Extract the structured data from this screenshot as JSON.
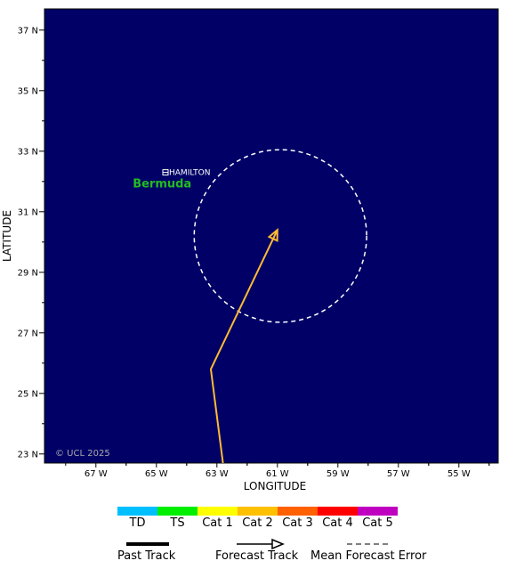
{
  "map": {
    "background_color": "#000066",
    "extent": {
      "lon_west": 68.7,
      "lon_east": 53.7,
      "lat_south": 22.7,
      "lat_north": 37.7
    },
    "lon_ticks": [
      {
        "value": 67,
        "label": "67 W"
      },
      {
        "value": 65,
        "label": "65 W"
      },
      {
        "value": 63,
        "label": "63 W"
      },
      {
        "value": 61,
        "label": "61 W"
      },
      {
        "value": 59,
        "label": "59 W"
      },
      {
        "value": 57,
        "label": "57 W"
      },
      {
        "value": 55,
        "label": "55 W"
      }
    ],
    "lat_ticks": [
      {
        "value": 37,
        "label": "37 N"
      },
      {
        "value": 35,
        "label": "35 N"
      },
      {
        "value": 33,
        "label": "33 N"
      },
      {
        "value": 31,
        "label": "31 N"
      },
      {
        "value": 29,
        "label": "29 N"
      },
      {
        "value": 27,
        "label": "27 N"
      },
      {
        "value": 25,
        "label": "25 N"
      },
      {
        "value": 23,
        "label": "23 N"
      }
    ],
    "xlabel": "LONGITUDE",
    "ylabel": "LATITUDE",
    "copyright": "© UCL 2025",
    "city": {
      "name": "HAMILTON",
      "lon": 64.7,
      "lat": 32.3
    },
    "island": {
      "name": "Bermuda",
      "lon": 64.9,
      "lat": 31.8,
      "color": "#22bb22"
    },
    "forecast_track": {
      "color": "#ffbb33",
      "points": [
        {
          "lon": 62.8,
          "lat": 22.7
        },
        {
          "lon": 63.2,
          "lat": 25.8
        },
        {
          "lon": 61.0,
          "lat": 30.4
        }
      ]
    },
    "error_cone": {
      "center_lon": 60.9,
      "center_lat": 30.2,
      "radius_deg": 2.85,
      "color": "#ffffff"
    }
  },
  "legend": {
    "categories": [
      {
        "label": "TD",
        "color": "#00bfff"
      },
      {
        "label": "TS",
        "color": "#00ee00"
      },
      {
        "label": "Cat 1",
        "color": "#ffff00"
      },
      {
        "label": "Cat 2",
        "color": "#ffc000"
      },
      {
        "label": "Cat 3",
        "color": "#ff6000"
      },
      {
        "label": "Cat 4",
        "color": "#ff0000"
      },
      {
        "label": "Cat 5",
        "color": "#c000c0"
      }
    ],
    "track_types": {
      "past": "Past Track",
      "forecast": "Forecast Track",
      "error": "Mean Forecast Error"
    }
  }
}
